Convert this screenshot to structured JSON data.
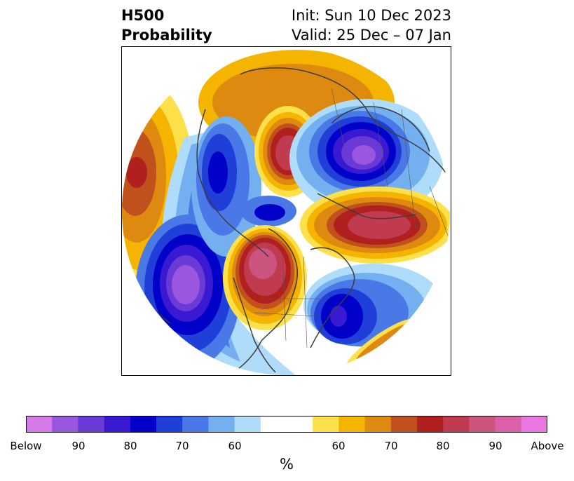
{
  "header": {
    "title_line1": "H500",
    "title_line2": "Probability",
    "init": "Init: Sun 10 Dec 2023",
    "valid": "Valid: 25 Dec – 07 Jan"
  },
  "colorbar": {
    "colors": [
      "#d479e5",
      "#9b56df",
      "#6a3ad6",
      "#3a19d2",
      "#0000c8",
      "#1f3fd8",
      "#4a78e6",
      "#74b0f0",
      "#aedcfa",
      "#ffffff",
      "#ffffff",
      "#fde04a",
      "#f4b400",
      "#de8a10",
      "#c0501c",
      "#b0201f",
      "#c03a50",
      "#cc5580",
      "#dc60a8",
      "#e878e0"
    ],
    "tick_labels": [
      "Below",
      "90",
      "80",
      "70",
      "60",
      "60",
      "70",
      "80",
      "90",
      "Above"
    ],
    "unit": "%"
  }
}
